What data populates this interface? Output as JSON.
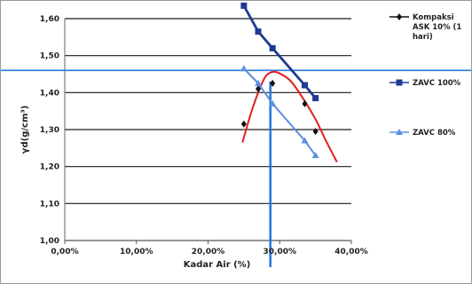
{
  "chart_data": {
    "type": "line",
    "title": "",
    "xlabel": "Kadar Air (%)",
    "ylabel": "γd(g/cm³)",
    "xlim": [
      0,
      40
    ],
    "ylim": [
      1.0,
      1.6
    ],
    "x_ticks": [
      "0,00%",
      "10,00%",
      "20,00%",
      "30,00%",
      "40,00%"
    ],
    "y_ticks": [
      "1,00",
      "1,10",
      "1,20",
      "1,30",
      "1,40",
      "1,50",
      "1,60"
    ],
    "grid": "horizontal",
    "legend_position": "right",
    "series": [
      {
        "name": "Kompaksi ASK 10% (1 hari)",
        "color": "#111111",
        "marker": "diamond",
        "points": [
          [
            25.0,
            1.315
          ],
          [
            27.0,
            1.41
          ],
          [
            29.0,
            1.425
          ],
          [
            33.5,
            1.37
          ],
          [
            35.0,
            1.295
          ]
        ]
      },
      {
        "name": "ZAVC 100%",
        "color": "#1f3a93",
        "marker": "square",
        "points": [
          [
            25.0,
            1.635
          ],
          [
            27.0,
            1.565
          ],
          [
            29.0,
            1.52
          ],
          [
            33.5,
            1.42
          ],
          [
            35.0,
            1.385
          ]
        ]
      },
      {
        "name": "ZAVC 80%",
        "color": "#5b8fe0",
        "marker": "triangle",
        "points": [
          [
            25.0,
            1.465
          ],
          [
            27.0,
            1.425
          ],
          [
            29.0,
            1.37
          ],
          [
            33.5,
            1.27
          ],
          [
            35.0,
            1.23
          ]
        ]
      }
    ],
    "fit_curve": {
      "color": "#e02020",
      "points": [
        [
          24.8,
          1.265
        ],
        [
          26.0,
          1.345
        ],
        [
          27.0,
          1.4
        ],
        [
          28.0,
          1.443
        ],
        [
          29.0,
          1.456
        ],
        [
          30.0,
          1.452
        ],
        [
          31.5,
          1.432
        ],
        [
          33.0,
          1.392
        ],
        [
          35.0,
          1.328
        ],
        [
          36.5,
          1.268
        ],
        [
          38.0,
          1.212
        ]
      ]
    },
    "guide_lines": {
      "color": "#2a7ad8",
      "horizontal_y": 1.46,
      "vertical_x": 28.7
    }
  }
}
